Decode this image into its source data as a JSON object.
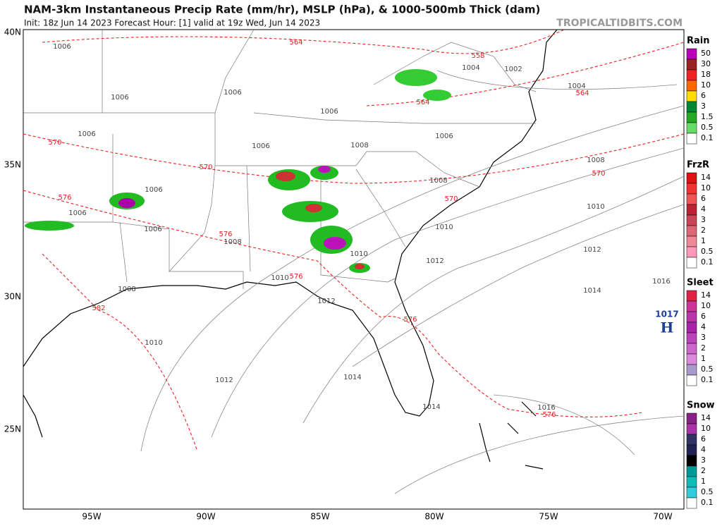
{
  "header": {
    "title": "NAM-3km Instantaneous Precip Rate (mm/hr), MSLP (hPa), & 1000-500mb Thick (dam)",
    "subtitle": "Init: 18z Jun 14 2023   Forecast Hour: [1]   valid at 19z Wed, Jun 14 2023",
    "brand": "TROPICALTIDBITS.COM"
  },
  "axes": {
    "lat": [
      "40N",
      "35N",
      "30N",
      "25N"
    ],
    "lon": [
      "95W",
      "90W",
      "85W",
      "80W",
      "75W",
      "70W"
    ]
  },
  "legend": [
    {
      "name": "Rain",
      "labels": [
        "50",
        "30",
        "18",
        "10",
        "6",
        "3",
        "1.5",
        "0.5",
        "0.1"
      ]
    },
    {
      "name": "FrzR",
      "labels": [
        "14",
        "10",
        "6",
        "4",
        "3",
        "2",
        "1",
        "0.5",
        "0.1"
      ]
    },
    {
      "name": "Sleet",
      "labels": [
        "14",
        "10",
        "6",
        "4",
        "3",
        "2",
        "1",
        "0.5",
        "0.1"
      ]
    },
    {
      "name": "Snow",
      "labels": [
        "14",
        "10",
        "6",
        "4",
        "3",
        "2",
        "1",
        "0.5",
        "0.1"
      ]
    }
  ],
  "isobar_labels": [
    "1006",
    "1006",
    "1006",
    "1006",
    "1006",
    "1006",
    "1006",
    "1006",
    "1006",
    "1006",
    "1004",
    "1004",
    "1002",
    "1008",
    "1008",
    "1008",
    "1008",
    "1008",
    "1010",
    "1010",
    "1010",
    "1010",
    "1010",
    "1012",
    "1012",
    "1012",
    "1012",
    "1014",
    "1014",
    "1014",
    "1016",
    "1016"
  ],
  "thickness_labels": [
    "564",
    "558",
    "564",
    "564",
    "570",
    "570",
    "570",
    "570",
    "576",
    "576",
    "576",
    "576",
    "576",
    "582"
  ],
  "high": {
    "pressure": "1017",
    "label": "H"
  }
}
